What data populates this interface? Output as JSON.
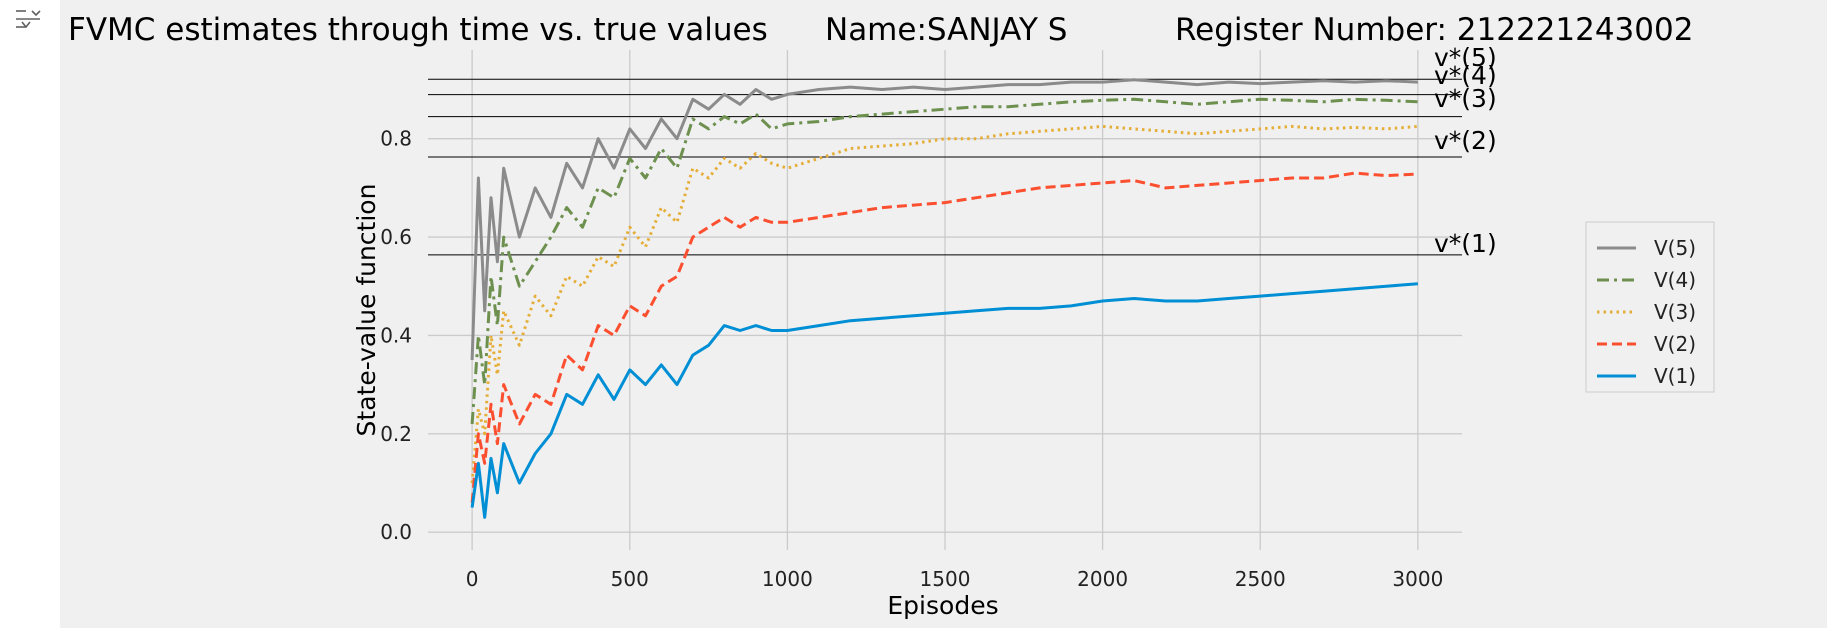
{
  "title": "FVMC estimates through time vs. true values",
  "name_label": "Name:SANJAY S",
  "register_label": "Register Number: 212221243002",
  "icons": {
    "output_toggle": "output-expand-icon"
  },
  "colors": {
    "figure_bg": "#f0f0f0",
    "grid": "#cbcbcb",
    "truth_line": "#000000",
    "V1": "#008fd5",
    "V2": "#fc4f30",
    "V3": "#e5ae38",
    "V4": "#6d904f",
    "V5": "#8b8b8b"
  },
  "chart_data": {
    "type": "line",
    "title": "FVMC estimates through time vs. true values",
    "xlabel": "Episodes",
    "ylabel": "State-value function",
    "xlim": [
      -140,
      3140
    ],
    "ylim": [
      -0.02,
      0.96
    ],
    "xticks": [
      "0",
      "500",
      "1000",
      "1500",
      "2000",
      "2500",
      "3000"
    ],
    "yticks": [
      "0.0",
      "0.2",
      "0.4",
      "0.6",
      "0.8"
    ],
    "grid": true,
    "legend_position": "right, outside plot",
    "true_values": [
      {
        "label": "v*(1)",
        "value": 0.5637
      },
      {
        "label": "v*(2)",
        "value": 0.7627
      },
      {
        "label": "v*(3)",
        "value": 0.8449
      },
      {
        "label": "v*(4)",
        "value": 0.8896
      },
      {
        "label": "v*(5)",
        "value": 0.9209
      }
    ],
    "series": [
      {
        "name": "V(5)",
        "style": "solid",
        "x": [
          0,
          20,
          40,
          60,
          80,
          100,
          150,
          200,
          250,
          300,
          350,
          400,
          450,
          500,
          550,
          600,
          650,
          700,
          750,
          800,
          850,
          900,
          950,
          1000,
          1100,
          1200,
          1300,
          1400,
          1500,
          1600,
          1700,
          1800,
          1900,
          2000,
          2100,
          2200,
          2300,
          2400,
          2500,
          2600,
          2700,
          2800,
          2900,
          3000
        ],
        "values": [
          0.35,
          0.72,
          0.45,
          0.68,
          0.55,
          0.74,
          0.6,
          0.7,
          0.64,
          0.75,
          0.7,
          0.8,
          0.74,
          0.82,
          0.78,
          0.84,
          0.8,
          0.88,
          0.86,
          0.89,
          0.87,
          0.9,
          0.88,
          0.89,
          0.9,
          0.905,
          0.9,
          0.905,
          0.9,
          0.905,
          0.91,
          0.91,
          0.915,
          0.915,
          0.92,
          0.915,
          0.91,
          0.915,
          0.912,
          0.915,
          0.918,
          0.915,
          0.918,
          0.915
        ]
      },
      {
        "name": "V(4)",
        "style": "dashdot",
        "x": [
          0,
          20,
          40,
          60,
          80,
          100,
          150,
          200,
          250,
          300,
          350,
          400,
          450,
          500,
          550,
          600,
          650,
          700,
          750,
          800,
          850,
          900,
          950,
          1000,
          1100,
          1200,
          1300,
          1400,
          1500,
          1600,
          1700,
          1800,
          1900,
          2000,
          2100,
          2200,
          2300,
          2400,
          2500,
          2600,
          2700,
          2800,
          2900,
          3000
        ],
        "values": [
          0.22,
          0.4,
          0.3,
          0.52,
          0.42,
          0.6,
          0.5,
          0.55,
          0.6,
          0.66,
          0.62,
          0.7,
          0.68,
          0.76,
          0.72,
          0.78,
          0.74,
          0.84,
          0.82,
          0.845,
          0.83,
          0.85,
          0.82,
          0.83,
          0.835,
          0.845,
          0.85,
          0.855,
          0.86,
          0.865,
          0.865,
          0.87,
          0.875,
          0.878,
          0.88,
          0.875,
          0.87,
          0.875,
          0.88,
          0.878,
          0.875,
          0.88,
          0.878,
          0.875
        ]
      },
      {
        "name": "V(3)",
        "style": "dotted",
        "x": [
          0,
          20,
          40,
          60,
          80,
          100,
          150,
          200,
          250,
          300,
          350,
          400,
          450,
          500,
          550,
          600,
          650,
          700,
          750,
          800,
          850,
          900,
          950,
          1000,
          1100,
          1200,
          1300,
          1400,
          1500,
          1600,
          1700,
          1800,
          1900,
          2000,
          2100,
          2200,
          2300,
          2400,
          2500,
          2600,
          2700,
          2800,
          2900,
          3000
        ],
        "values": [
          0.1,
          0.25,
          0.2,
          0.4,
          0.32,
          0.45,
          0.38,
          0.48,
          0.44,
          0.52,
          0.5,
          0.56,
          0.54,
          0.62,
          0.58,
          0.66,
          0.63,
          0.74,
          0.72,
          0.76,
          0.74,
          0.77,
          0.75,
          0.74,
          0.76,
          0.78,
          0.785,
          0.79,
          0.8,
          0.8,
          0.81,
          0.815,
          0.82,
          0.825,
          0.82,
          0.815,
          0.81,
          0.815,
          0.82,
          0.825,
          0.82,
          0.823,
          0.82,
          0.825
        ]
      },
      {
        "name": "V(2)",
        "style": "dashed",
        "x": [
          0,
          20,
          40,
          60,
          80,
          100,
          150,
          200,
          250,
          300,
          350,
          400,
          450,
          500,
          550,
          600,
          650,
          700,
          750,
          800,
          850,
          900,
          950,
          1000,
          1100,
          1200,
          1300,
          1400,
          1500,
          1600,
          1700,
          1800,
          1900,
          2000,
          2100,
          2200,
          2300,
          2400,
          2500,
          2600,
          2700,
          2800,
          2900,
          3000
        ],
        "values": [
          0.06,
          0.2,
          0.14,
          0.26,
          0.18,
          0.3,
          0.22,
          0.28,
          0.26,
          0.36,
          0.33,
          0.42,
          0.4,
          0.46,
          0.44,
          0.5,
          0.52,
          0.6,
          0.62,
          0.64,
          0.62,
          0.64,
          0.63,
          0.63,
          0.64,
          0.65,
          0.66,
          0.665,
          0.67,
          0.68,
          0.69,
          0.7,
          0.705,
          0.71,
          0.715,
          0.7,
          0.705,
          0.71,
          0.715,
          0.72,
          0.72,
          0.73,
          0.725,
          0.728
        ]
      },
      {
        "name": "V(1)",
        "style": "solid",
        "x": [
          0,
          20,
          40,
          60,
          80,
          100,
          150,
          200,
          250,
          300,
          350,
          400,
          450,
          500,
          550,
          600,
          650,
          700,
          750,
          800,
          850,
          900,
          950,
          1000,
          1100,
          1200,
          1300,
          1400,
          1500,
          1600,
          1700,
          1800,
          1900,
          2000,
          2100,
          2200,
          2300,
          2400,
          2500,
          2600,
          2700,
          2800,
          2900,
          3000
        ],
        "values": [
          0.05,
          0.14,
          0.03,
          0.15,
          0.08,
          0.18,
          0.1,
          0.16,
          0.2,
          0.28,
          0.26,
          0.32,
          0.27,
          0.33,
          0.3,
          0.34,
          0.3,
          0.36,
          0.38,
          0.42,
          0.41,
          0.42,
          0.41,
          0.41,
          0.42,
          0.43,
          0.435,
          0.44,
          0.445,
          0.45,
          0.455,
          0.455,
          0.46,
          0.47,
          0.475,
          0.47,
          0.47,
          0.475,
          0.48,
          0.485,
          0.49,
          0.495,
          0.5,
          0.505
        ]
      }
    ],
    "legend": [
      "V(5)",
      "V(4)",
      "V(3)",
      "V(2)",
      "V(1)"
    ]
  }
}
